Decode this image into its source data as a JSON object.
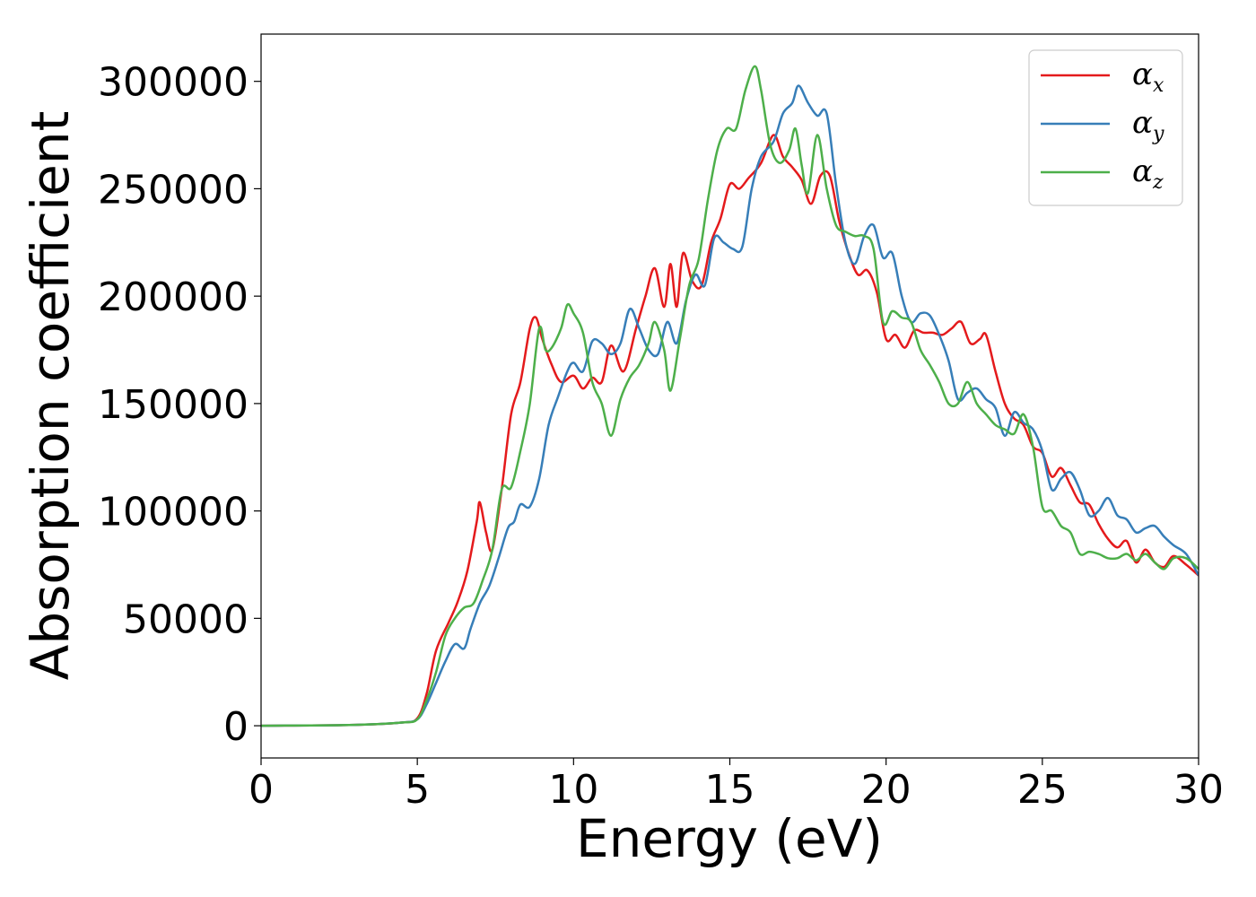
{
  "chart_data": {
    "type": "line",
    "title": "",
    "xlabel": "Energy (eV)",
    "ylabel": "Absorption coefficient",
    "xlim": [
      0,
      30
    ],
    "ylim": [
      -15000,
      322000
    ],
    "xticks": [
      0,
      5,
      10,
      15,
      20,
      25,
      30
    ],
    "xtick_labels": [
      "0",
      "5",
      "10",
      "15",
      "20",
      "25",
      "30"
    ],
    "yticks": [
      0,
      50000,
      100000,
      150000,
      200000,
      250000,
      300000
    ],
    "ytick_labels": [
      "0",
      "50000",
      "100000",
      "150000",
      "200000",
      "250000",
      "300000"
    ],
    "grid": false,
    "legend": {
      "position": "upper right",
      "entries": [
        {
          "symbol": "α",
          "sub": "x",
          "color": "#e41a1c"
        },
        {
          "symbol": "α",
          "sub": "y",
          "color": "#377eb8"
        },
        {
          "symbol": "α",
          "sub": "z",
          "color": "#4daf4a"
        }
      ]
    },
    "series": [
      {
        "name": "αx",
        "color": "#e41a1c",
        "x": [
          0,
          3,
          4.5,
          5.0,
          5.3,
          5.6,
          6.0,
          6.3,
          6.6,
          6.9,
          7.0,
          7.2,
          7.4,
          7.7,
          8.0,
          8.3,
          8.6,
          8.8,
          9.0,
          9.3,
          9.6,
          10.0,
          10.3,
          10.6,
          10.9,
          11.2,
          11.6,
          12.0,
          12.3,
          12.6,
          12.9,
          13.1,
          13.3,
          13.5,
          13.8,
          14.1,
          14.4,
          14.7,
          15.0,
          15.3,
          15.6,
          16.0,
          16.4,
          16.7,
          17.0,
          17.3,
          17.6,
          17.9,
          18.2,
          18.5,
          18.8,
          19.1,
          19.4,
          19.7,
          20.0,
          20.3,
          20.6,
          20.9,
          21.2,
          21.5,
          21.8,
          22.1,
          22.4,
          22.7,
          23.0,
          23.2,
          23.5,
          23.8,
          24.1,
          24.4,
          24.7,
          25.0,
          25.3,
          25.6,
          25.9,
          26.2,
          26.5,
          26.8,
          27.1,
          27.4,
          27.7,
          28.0,
          28.3,
          28.6,
          28.9,
          29.2,
          29.6,
          30.0
        ],
        "y": [
          0,
          400,
          1500,
          3500,
          15000,
          35000,
          48000,
          58000,
          72000,
          95000,
          104000,
          90000,
          82000,
          110000,
          145000,
          160000,
          185000,
          190000,
          180000,
          168000,
          160000,
          163000,
          157000,
          162000,
          160000,
          177000,
          165000,
          185000,
          200000,
          213000,
          195000,
          215000,
          195000,
          220000,
          207000,
          205000,
          225000,
          236000,
          252000,
          250000,
          255000,
          262000,
          275000,
          265000,
          260000,
          254000,
          243000,
          256000,
          256000,
          235000,
          220000,
          210000,
          212000,
          202000,
          180000,
          182000,
          176000,
          184000,
          183000,
          183000,
          182000,
          185000,
          188000,
          178000,
          180000,
          182000,
          165000,
          150000,
          143000,
          140000,
          130000,
          127000,
          116000,
          120000,
          112000,
          104000,
          103000,
          94000,
          87000,
          83000,
          86000,
          76000,
          82000,
          76000,
          74000,
          79000,
          75000,
          70000
        ]
      },
      {
        "name": "αy",
        "color": "#377eb8",
        "x": [
          0,
          3,
          4.5,
          5.0,
          5.3,
          5.6,
          5.9,
          6.2,
          6.5,
          6.7,
          7.0,
          7.3,
          7.6,
          7.9,
          8.1,
          8.3,
          8.6,
          8.9,
          9.2,
          9.5,
          9.8,
          10.0,
          10.3,
          10.6,
          10.9,
          11.2,
          11.5,
          11.8,
          12.1,
          12.4,
          12.7,
          13.0,
          13.3,
          13.6,
          13.9,
          14.2,
          14.5,
          14.8,
          15.1,
          15.4,
          15.7,
          16.0,
          16.4,
          16.7,
          17.0,
          17.2,
          17.5,
          17.8,
          18.1,
          18.4,
          18.7,
          19.0,
          19.3,
          19.6,
          19.9,
          20.2,
          20.5,
          20.8,
          21.1,
          21.4,
          21.7,
          22.0,
          22.3,
          22.6,
          22.9,
          23.2,
          23.5,
          23.8,
          24.1,
          24.4,
          24.7,
          25.0,
          25.3,
          25.6,
          25.9,
          26.2,
          26.5,
          26.8,
          27.1,
          27.4,
          27.7,
          28.0,
          28.3,
          28.6,
          28.9,
          29.2,
          29.6,
          30.0
        ],
        "y": [
          0,
          400,
          1500,
          3000,
          10000,
          20000,
          30000,
          38000,
          36000,
          45000,
          57000,
          65000,
          78000,
          92000,
          95000,
          103000,
          102000,
          115000,
          140000,
          153000,
          165000,
          169000,
          165000,
          179000,
          178000,
          173000,
          178000,
          194000,
          185000,
          175000,
          173000,
          188000,
          178000,
          198000,
          210000,
          205000,
          227000,
          225000,
          222000,
          223000,
          250000,
          265000,
          272000,
          285000,
          290000,
          298000,
          290000,
          284000,
          285000,
          252000,
          225000,
          215000,
          228000,
          233000,
          218000,
          220000,
          200000,
          188000,
          192000,
          191000,
          182000,
          170000,
          152000,
          155000,
          157000,
          152000,
          148000,
          135000,
          146000,
          141000,
          138000,
          128000,
          110000,
          115000,
          118000,
          110000,
          98000,
          100000,
          106000,
          98000,
          96000,
          90000,
          92000,
          93000,
          88000,
          84000,
          80000,
          70000
        ]
      },
      {
        "name": "αz",
        "color": "#4daf4a",
        "x": [
          0,
          3,
          4.5,
          5.0,
          5.3,
          5.6,
          5.9,
          6.2,
          6.5,
          6.8,
          7.1,
          7.4,
          7.7,
          8.0,
          8.3,
          8.6,
          8.9,
          9.1,
          9.3,
          9.6,
          9.8,
          10.0,
          10.3,
          10.6,
          10.9,
          11.2,
          11.5,
          11.8,
          12.1,
          12.4,
          12.6,
          12.9,
          13.1,
          13.4,
          13.7,
          14.0,
          14.3,
          14.6,
          14.9,
          15.2,
          15.5,
          15.8,
          16.0,
          16.3,
          16.6,
          16.9,
          17.1,
          17.3,
          17.5,
          17.8,
          18.1,
          18.4,
          18.7,
          19.0,
          19.3,
          19.6,
          19.9,
          20.2,
          20.5,
          20.8,
          21.1,
          21.4,
          21.7,
          22.0,
          22.3,
          22.6,
          22.9,
          23.2,
          23.5,
          23.8,
          24.1,
          24.4,
          24.7,
          25.0,
          25.3,
          25.6,
          25.9,
          26.2,
          26.5,
          26.8,
          27.1,
          27.4,
          27.7,
          28.0,
          28.3,
          28.6,
          28.9,
          29.2,
          29.6,
          30.0
        ],
        "y": [
          0,
          400,
          1500,
          3000,
          12000,
          25000,
          42000,
          50000,
          55000,
          57000,
          68000,
          82000,
          110000,
          111000,
          128000,
          150000,
          185000,
          175000,
          176000,
          185000,
          196000,
          192000,
          183000,
          160000,
          150000,
          135000,
          152000,
          162000,
          168000,
          178000,
          188000,
          175000,
          156000,
          180000,
          205000,
          217000,
          245000,
          268000,
          278000,
          278000,
          296000,
          307000,
          296000,
          270000,
          262000,
          268000,
          278000,
          261000,
          248000,
          275000,
          250000,
          233000,
          230000,
          228000,
          228000,
          222000,
          188000,
          193000,
          190000,
          188000,
          175000,
          168000,
          160000,
          150000,
          150000,
          160000,
          150000,
          145000,
          140000,
          138000,
          136000,
          145000,
          130000,
          102000,
          100000,
          93000,
          90000,
          80000,
          81000,
          80000,
          78000,
          78000,
          80000,
          77000,
          80000,
          76000,
          73000,
          78000,
          78000,
          73000
        ]
      }
    ]
  }
}
